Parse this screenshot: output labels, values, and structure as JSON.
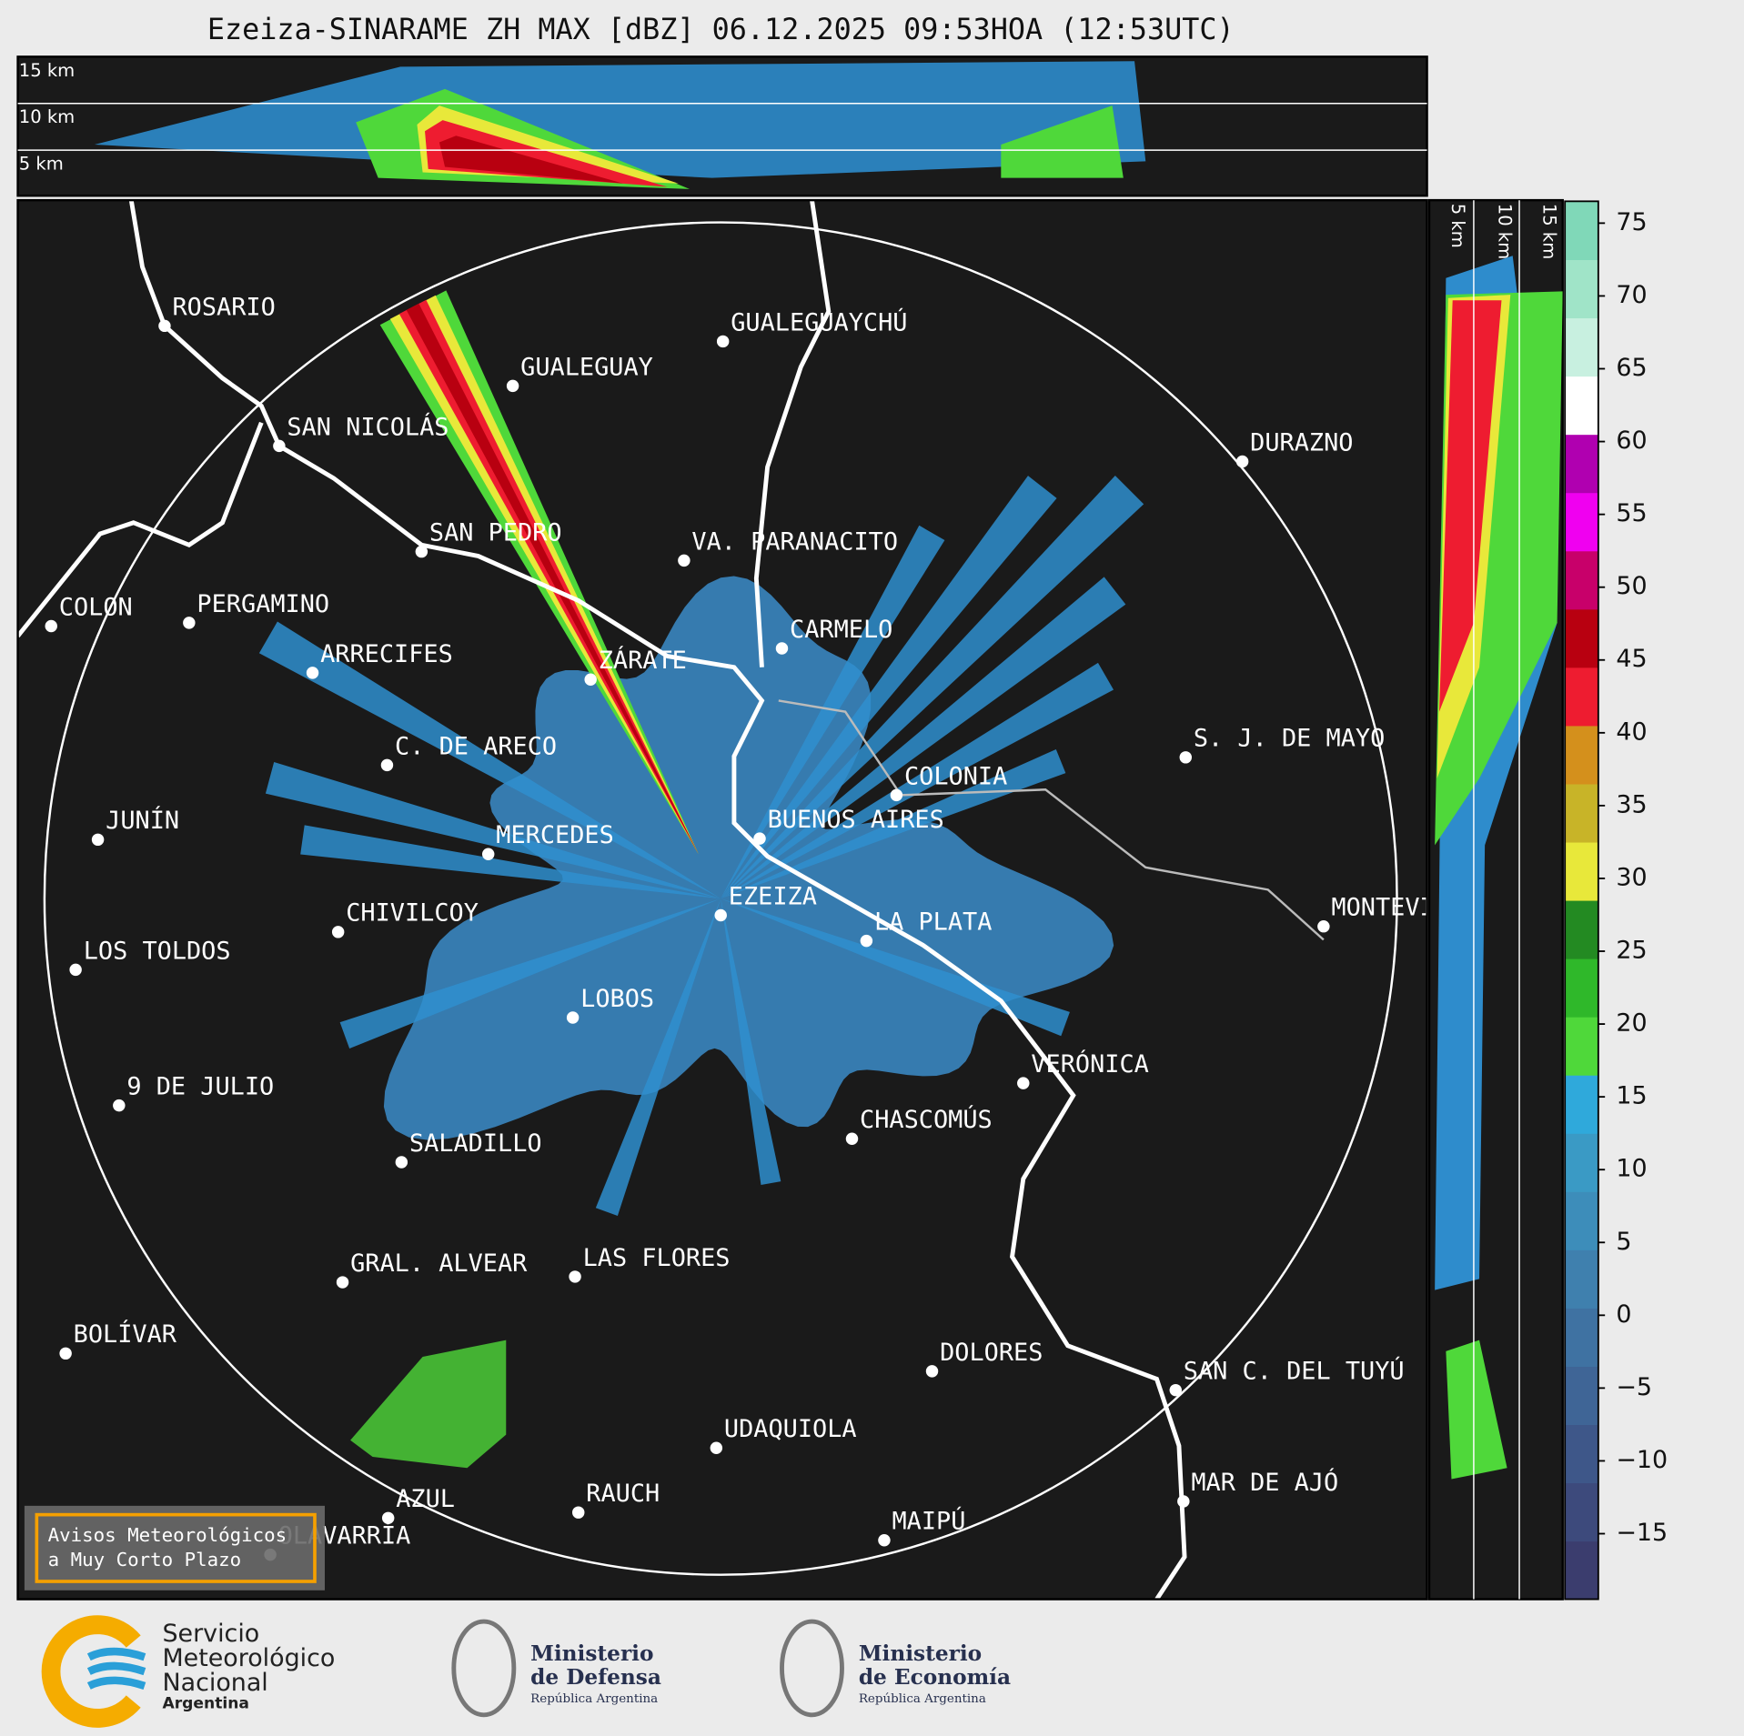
{
  "title": "Ezeiza-SINARAME ZH MAX [dBZ] 06.12.2025 09:53HOA (12:53UTC)",
  "vertical_profile_top": {
    "labels": [
      "15 km",
      "10 km",
      "5 km"
    ]
  },
  "vertical_profile_side": {
    "labels": [
      "5 km",
      "10 km",
      "15 km"
    ]
  },
  "cities": [
    "ROSARIO",
    "GUALEGUAYCHÚ",
    "GUALEGUAY",
    "SAN NICOLÁS",
    "DURAZNO",
    "SAN PEDRO",
    "VA. PARANACITO",
    "COLON",
    "PERGAMINO",
    "CARMELO",
    "ARRECIFES",
    "ZÁRATE",
    "C. DE ARECO",
    "S. J. DE MAYO",
    "COLONIA",
    "JUNÍN",
    "BUENOS AIRES",
    "MERCEDES",
    "EZEIZA",
    "CHIVILCOY",
    "MONTEVIDEO",
    "LA PLATA",
    "LOS TOLDOS",
    "LOBOS",
    "VERÓNICA",
    "9 DE JULIO",
    "CHASCOMÚS",
    "SALADILLO",
    "GRAL. ALVEAR",
    "LAS FLORES",
    "BOLÍVAR",
    "DOLORES",
    "SAN C. DEL TUYÚ",
    "UDAQUIOLA",
    "MAR DE AJÓ",
    "RAUCH",
    "AZUL",
    "MAIPÚ",
    "OLAVARRÍA"
  ],
  "colorbar": {
    "lim": [
      -19.5,
      76.5
    ],
    "ticks": [
      75,
      70,
      65,
      60,
      55,
      50,
      45,
      40,
      35,
      30,
      25,
      20,
      15,
      10,
      5,
      0,
      {
        "value": -5,
        "label": "−5"
      },
      {
        "value": -10,
        "label": "−10"
      },
      {
        "value": -15,
        "label": "−15"
      }
    ],
    "colors": [
      "#3b3d6e",
      "#3d4a7c",
      "#3e5789",
      "#3f6596",
      "#3f72a2",
      "#3f80ae",
      "#3d8dba",
      "#3a9ac5",
      "#2fa9db",
      "#4fd83a",
      "#2fb82a",
      "#238a22",
      "#e8e83a",
      "#c8b428",
      "#d4901c",
      "#ee1c30",
      "#b80010",
      "#c8006a",
      "#f000f0",
      "#b000b0",
      "#ffffff",
      "#c8f0e0",
      "#a0e4c8",
      "#80d8b8"
    ]
  },
  "notice": [
    "Avisos Meteorológicos",
    "a Muy Corto Plazo"
  ],
  "logos": [
    {
      "lines": [
        "Servicio",
        "Meteorológico",
        "Nacional"
      ],
      "sub": "Argentina"
    },
    {
      "lines": [
        "Ministerio",
        "de Defensa"
      ],
      "sub": "República Argentina"
    },
    {
      "lines": [
        "Ministerio",
        "de Economía"
      ],
      "sub": "República Argentina"
    }
  ]
}
